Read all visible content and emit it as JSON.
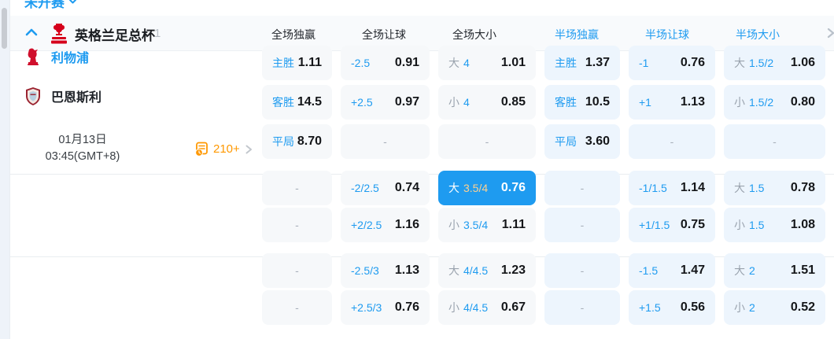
{
  "top_bar": {
    "tab_label": "未开赛"
  },
  "league_header": {
    "title": "英格兰足总杯",
    "count": "1",
    "logo": "fa-cup-logo",
    "columns": [
      {
        "label": "全场独赢",
        "scope": "ft"
      },
      {
        "label": "全场让球",
        "scope": "ft"
      },
      {
        "label": "全场大小",
        "scope": "ft"
      },
      {
        "label": "半场独赢",
        "scope": "ht"
      },
      {
        "label": "半场让球",
        "scope": "ht"
      },
      {
        "label": "半场大小",
        "scope": "ht"
      }
    ]
  },
  "match": {
    "home_team": "利物浦",
    "away_team": "巴恩斯利",
    "date": "01月13日",
    "time": "03:45(GMT+8)",
    "markets_count": "210+"
  },
  "odds": {
    "dash_char": "-",
    "rows": [
      {
        "cells": [
          {
            "num": "主胜",
            "value": "1.11",
            "zone": "ft"
          },
          {
            "num": "-2.5",
            "value": "0.91",
            "zone": "ft"
          },
          {
            "prefix": "大",
            "num": "4",
            "value": "1.01",
            "zone": "ft"
          },
          {
            "num": "主胜",
            "value": "1.37",
            "zone": "ht"
          },
          {
            "num": "-1",
            "value": "0.76",
            "zone": "ht"
          },
          {
            "prefix": "大",
            "num": "1.5/2",
            "value": "1.06",
            "zone": "ht"
          }
        ]
      },
      {
        "cells": [
          {
            "num": "客胜",
            "value": "14.5",
            "zone": "ft"
          },
          {
            "num": "+2.5",
            "value": "0.97",
            "zone": "ft"
          },
          {
            "prefix": "小",
            "num": "4",
            "value": "0.85",
            "zone": "ft"
          },
          {
            "num": "客胜",
            "value": "10.5",
            "zone": "ht"
          },
          {
            "num": "+1",
            "value": "1.13",
            "zone": "ht"
          },
          {
            "prefix": "小",
            "num": "1.5/2",
            "value": "0.80",
            "zone": "ht"
          }
        ]
      },
      {
        "cells": [
          {
            "num": "平局",
            "value": "8.70",
            "zone": "ft"
          },
          {
            "dash": true,
            "zone": "ft"
          },
          {
            "dash": true,
            "zone": "ft"
          },
          {
            "num": "平局",
            "value": "3.60",
            "zone": "ht"
          },
          {
            "dash": true,
            "zone": "ht"
          },
          {
            "dash": true,
            "zone": "ht"
          }
        ]
      },
      {
        "cells": [
          {
            "dash": true,
            "zone": "ft"
          },
          {
            "num": "-2/2.5",
            "value": "0.74",
            "zone": "ft"
          },
          {
            "prefix": "大",
            "num": "3.5/4",
            "value": "0.76",
            "zone": "ft",
            "highlighted": true
          },
          {
            "dash": true,
            "zone": "ht"
          },
          {
            "num": "-1/1.5",
            "value": "1.14",
            "zone": "ht"
          },
          {
            "prefix": "大",
            "num": "1.5",
            "value": "0.78",
            "zone": "ht"
          }
        ]
      },
      {
        "cells": [
          {
            "dash": true,
            "zone": "ft"
          },
          {
            "num": "+2/2.5",
            "value": "1.16",
            "zone": "ft"
          },
          {
            "prefix": "小",
            "num": "3.5/4",
            "value": "1.11",
            "zone": "ft"
          },
          {
            "dash": true,
            "zone": "ht"
          },
          {
            "num": "+1/1.5",
            "value": "0.75",
            "zone": "ht"
          },
          {
            "prefix": "小",
            "num": "1.5",
            "value": "1.08",
            "zone": "ht"
          }
        ]
      },
      {
        "cells": [
          {
            "dash": true,
            "zone": "ft"
          },
          {
            "num": "-2.5/3",
            "value": "1.13",
            "zone": "ft"
          },
          {
            "prefix": "大",
            "num": "4/4.5",
            "value": "1.23",
            "zone": "ft"
          },
          {
            "dash": true,
            "zone": "ht"
          },
          {
            "num": "-1.5",
            "value": "1.47",
            "zone": "ht"
          },
          {
            "prefix": "大",
            "num": "2",
            "value": "1.51",
            "zone": "ht"
          }
        ]
      },
      {
        "cells": [
          {
            "dash": true,
            "zone": "ft"
          },
          {
            "num": "+2.5/3",
            "value": "0.76",
            "zone": "ft"
          },
          {
            "prefix": "小",
            "num": "4/4.5",
            "value": "0.67",
            "zone": "ft"
          },
          {
            "dash": true,
            "zone": "ht"
          },
          {
            "num": "+1.5",
            "value": "0.56",
            "zone": "ht"
          },
          {
            "prefix": "小",
            "num": "2",
            "value": "0.52",
            "zone": "ht"
          }
        ]
      }
    ]
  },
  "colors": {
    "accent_blue": "#1e9bf0",
    "highlight_bg": "#1e9bf0",
    "highlight_num": "#ffd18f",
    "markets_orange": "#ff9800",
    "ft_cell_bg": "#f6f8fa",
    "ht_cell_bg": "#edf5fd"
  }
}
